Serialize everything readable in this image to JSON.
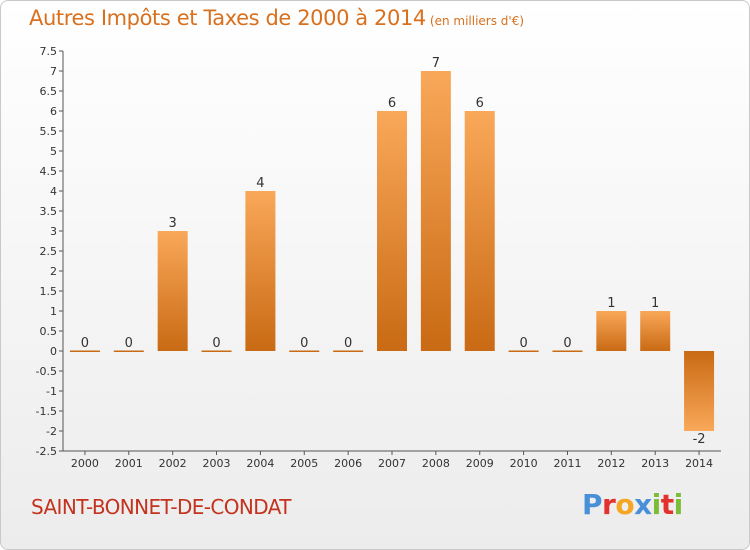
{
  "header": {
    "title": "Autres Impôts et Taxes de 2000 à 2014",
    "unit": "(en milliers d'€)"
  },
  "footer": {
    "commune": "SAINT-BONNET-DE-CONDAT",
    "logo": "Proxiti"
  },
  "colors": {
    "title": "#d9701e",
    "commune": "#c3331e",
    "bar_light": "#f9a859",
    "bar_dark": "#c96a14",
    "logo_letters": [
      "#4a90d9",
      "#e1322e",
      "#f5a623",
      "#4a90d9",
      "#7bbd36",
      "#e1322e",
      "#7bbd36"
    ]
  },
  "chart_data": {
    "type": "bar",
    "title": "Autres Impôts et Taxes de 2000 à 2014",
    "subtitle": "(en milliers d'€)",
    "categories": [
      "2000",
      "2001",
      "2002",
      "2003",
      "2004",
      "2005",
      "2006",
      "2007",
      "2008",
      "2009",
      "2010",
      "2011",
      "2012",
      "2013",
      "2014"
    ],
    "values": [
      0,
      0,
      3,
      0,
      4,
      0,
      0,
      6,
      7,
      6,
      0,
      0,
      1,
      1,
      -2
    ],
    "ylim": [
      -2.5,
      7.5
    ],
    "yticks": [
      "7.5",
      "7",
      "6.5",
      "6",
      "5.5",
      "5",
      "4.5",
      "4",
      "3.5",
      "3",
      "2.5",
      "2",
      "1.5",
      "1",
      "0.5",
      "0",
      "-0.5",
      "-1",
      "-1.5",
      "-2",
      "-2.5"
    ],
    "grid": false,
    "legend": "none"
  }
}
